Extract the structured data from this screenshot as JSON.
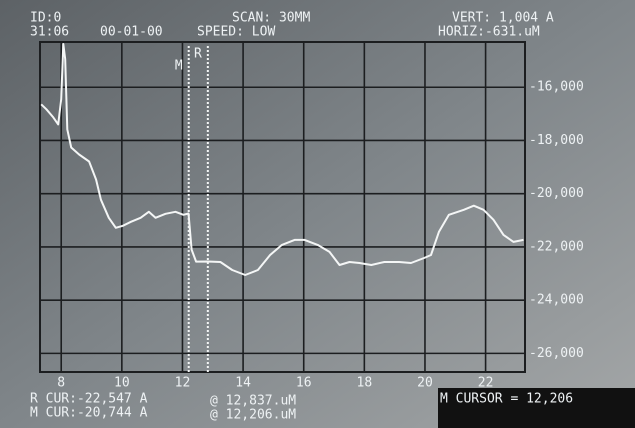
{
  "chart_data": {
    "type": "line",
    "annotations": [
      "ID:0",
      "31:06",
      "00-01-00",
      "SCAN: 30MM",
      "SPEED: LOW",
      "VERT: 1,004 A",
      "HORIZ:-631.uM",
      "R CUR:-22,547 A",
      "@ 12,837.uM",
      "M CUR:-20,744 A",
      "@ 12,206.uM",
      "M CURSOR = 12,206"
    ],
    "cursors": [
      {
        "name": "M",
        "x": 12.206
      },
      {
        "name": "R",
        "x": 12.837
      }
    ],
    "x": [
      7.34,
      7.51,
      7.74,
      7.9,
      8.0,
      8.07,
      8.13,
      8.2,
      8.33,
      8.59,
      8.92,
      9.15,
      9.31,
      9.57,
      9.8,
      10.03,
      10.3,
      10.62,
      10.89,
      11.11,
      11.44,
      11.77,
      12.03,
      12.2,
      12.3,
      12.45,
      12.84,
      13.25,
      13.64,
      14.07,
      14.49,
      14.89,
      15.28,
      15.7,
      16.03,
      16.46,
      16.85,
      17.18,
      17.51,
      17.84,
      18.23,
      18.66,
      19.15,
      19.54,
      19.97,
      20.2,
      20.46,
      20.79,
      21.28,
      21.61,
      21.93,
      22.26,
      22.59,
      22.92,
      23.25
    ],
    "values": [
      -16642,
      -16830,
      -17132,
      -17396,
      -16453,
      -14377,
      -14943,
      -17585,
      -18264,
      -18528,
      -18792,
      -19472,
      -20226,
      -20906,
      -21283,
      -21208,
      -21057,
      -20906,
      -20679,
      -20906,
      -20755,
      -20679,
      -20792,
      -20744,
      -22100,
      -22550,
      -22547,
      -22566,
      -22868,
      -23057,
      -22868,
      -22302,
      -21925,
      -21736,
      -21736,
      -21925,
      -22189,
      -22679,
      -22566,
      -22604,
      -22679,
      -22566,
      -22566,
      -22604,
      -22415,
      -22302,
      -21434,
      -20792,
      -20604,
      -20453,
      -20604,
      -20981,
      -21547,
      -21811,
      -21736
    ],
    "color": "#f4f6f6",
    "xlim": [
      7.3,
      23.3
    ],
    "ylim": [
      -26700,
      -14300
    ],
    "xticks": [
      8,
      10,
      12,
      14,
      16,
      18,
      20,
      22
    ],
    "yticks": [
      {
        "value": -16000,
        "label": "-16,000"
      },
      {
        "value": -18000,
        "label": "-18,000"
      },
      {
        "value": -20000,
        "label": "-20,000"
      },
      {
        "value": -22000,
        "label": "-22,000"
      },
      {
        "value": -24000,
        "label": "-24,000"
      },
      {
        "value": -26000,
        "label": "-26,000"
      }
    ],
    "grid": true
  }
}
